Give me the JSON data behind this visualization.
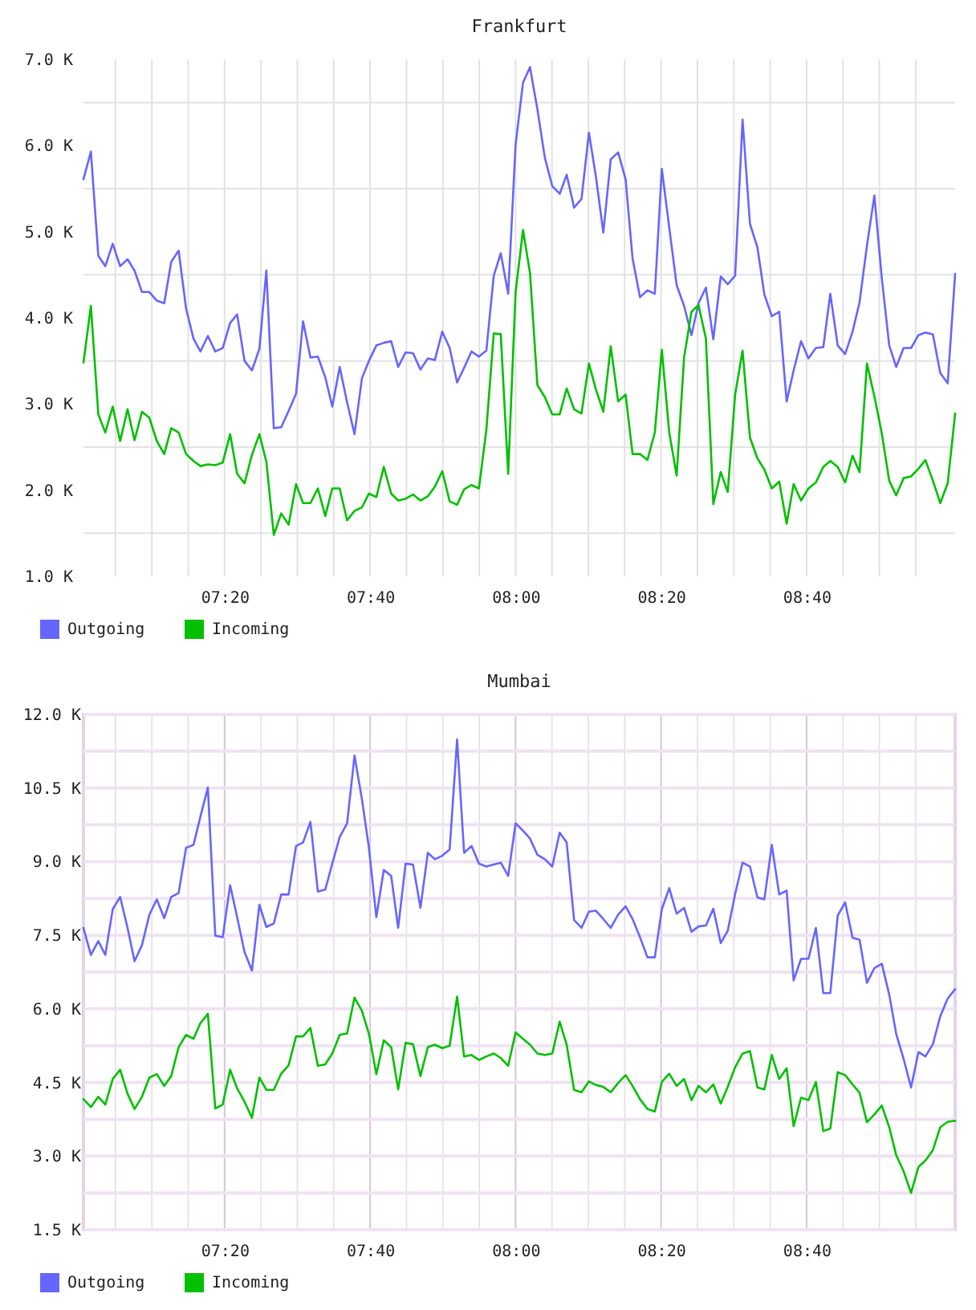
{
  "chart_data": [
    {
      "type": "line",
      "title": "Frankfurt",
      "x": [
        7.01,
        7.027,
        7.044,
        7.06,
        7.077,
        7.094,
        7.111,
        7.127,
        7.144,
        7.161,
        7.178,
        7.195,
        7.211,
        7.228,
        7.245,
        7.262,
        7.278,
        7.295,
        7.312,
        7.329,
        7.346,
        7.362,
        7.379,
        7.396,
        7.413,
        7.429,
        7.446,
        7.463,
        7.48,
        7.497,
        7.513,
        7.53,
        7.547,
        7.564,
        7.58,
        7.597,
        7.614,
        7.631,
        7.648,
        7.664,
        7.681,
        7.698,
        7.715,
        7.731,
        7.748,
        7.765,
        7.782,
        7.799,
        7.815,
        7.832,
        7.849,
        7.866,
        7.882,
        7.899,
        7.916,
        7.933,
        7.95,
        7.966,
        7.983,
        8.0,
        8.017,
        8.033,
        8.05,
        8.067,
        8.084,
        8.101,
        8.117,
        8.134,
        8.151,
        8.168,
        8.184,
        8.201,
        8.218,
        8.235,
        8.252,
        8.268,
        8.285,
        8.302,
        8.319,
        8.335,
        8.352,
        8.369,
        8.386,
        8.403,
        8.419,
        8.436,
        8.453,
        8.47,
        8.486,
        8.503,
        8.52,
        8.537,
        8.554,
        8.57,
        8.587,
        8.604,
        8.621,
        8.637,
        8.654,
        8.671,
        8.688,
        8.705,
        8.721,
        8.738,
        8.755,
        8.772,
        8.788,
        8.805,
        8.822,
        8.839,
        8.856,
        8.872,
        8.889,
        8.906,
        8.923,
        8.939,
        8.956,
        8.973,
        8.99,
        9.007
      ],
      "xlim": [
        7.01,
        9.007
      ],
      "xticks": [
        {
          "value": 7.0833,
          "label": null
        },
        {
          "value": 7.1667,
          "label": null
        },
        {
          "value": 7.25,
          "label": null
        },
        {
          "value": 7.3333,
          "label": "07:20"
        },
        {
          "value": 7.4167,
          "label": null
        },
        {
          "value": 7.5,
          "label": null
        },
        {
          "value": 7.5833,
          "label": null
        },
        {
          "value": 7.6667,
          "label": "07:40"
        },
        {
          "value": 7.75,
          "label": null
        },
        {
          "value": 7.8333,
          "label": null
        },
        {
          "value": 7.9167,
          "label": null
        },
        {
          "value": 8,
          "label": "08:00"
        },
        {
          "value": 8.0833,
          "label": null
        },
        {
          "value": 8.1667,
          "label": null
        },
        {
          "value": 8.25,
          "label": null
        },
        {
          "value": 8.3333,
          "label": "08:20"
        },
        {
          "value": 8.4167,
          "label": null
        },
        {
          "value": 8.5,
          "label": null
        },
        {
          "value": 8.5833,
          "label": null
        },
        {
          "value": 8.6667,
          "label": "08:40"
        },
        {
          "value": 8.75,
          "label": null
        },
        {
          "value": 8.8333,
          "label": null
        },
        {
          "value": 8.9167,
          "label": null
        }
      ],
      "ylim": [
        1000,
        7000
      ],
      "yticks": [
        {
          "value": 1000,
          "label": "1.0 K"
        },
        {
          "value": 1500,
          "label": null
        },
        {
          "value": 2000,
          "label": "2.0 K"
        },
        {
          "value": 2500,
          "label": null
        },
        {
          "value": 3000,
          "label": "3.0 K"
        },
        {
          "value": 3500,
          "label": null
        },
        {
          "value": 4000,
          "label": "4.0 K"
        },
        {
          "value": 4500,
          "label": null
        },
        {
          "value": 5000,
          "label": "5.0 K"
        },
        {
          "value": 5500,
          "label": null
        },
        {
          "value": 6000,
          "label": "6.0 K"
        },
        {
          "value": 6500,
          "label": null
        },
        {
          "value": 7000,
          "label": "7.0 K"
        }
      ],
      "grid": true,
      "legend": "bottom left",
      "line_style": "solid",
      "series": [
        {
          "name": "Outgoing",
          "color": "#6666ff",
          "values": [
            5610,
            5930,
            4720,
            4600,
            4860,
            4600,
            4680,
            4550,
            4300,
            4300,
            4200,
            4170,
            4650,
            4780,
            4110,
            3760,
            3610,
            3790,
            3610,
            3650,
            3940,
            4040,
            3500,
            3390,
            3640,
            4550,
            2720,
            2730,
            2920,
            3120,
            3960,
            3540,
            3550,
            3310,
            2970,
            3430,
            3020,
            2650,
            3300,
            3500,
            3680,
            3710,
            3730,
            3430,
            3600,
            3590,
            3400,
            3530,
            3510,
            3840,
            3650,
            3250,
            3420,
            3610,
            3550,
            3620,
            4490,
            4750,
            4280,
            6010,
            6730,
            6910,
            6420,
            5860,
            5530,
            5440,
            5660,
            5280,
            5380,
            6150,
            5640,
            4990,
            5840,
            5920,
            5610,
            4690,
            4240,
            4320,
            4280,
            5730,
            5050,
            4380,
            4140,
            3800,
            4170,
            4350,
            3750,
            4480,
            4390,
            4490,
            6300,
            5090,
            4820,
            4270,
            4020,
            4070,
            3030,
            3390,
            3730,
            3530,
            3650,
            3660,
            4280,
            3680,
            3580,
            3840,
            4180,
            4840,
            5420,
            4460,
            3680,
            3430,
            3650,
            3650,
            3800,
            3830,
            3810,
            3360,
            3240,
            4510
          ]
        },
        {
          "name": "Incoming",
          "color": "#00c000",
          "values": [
            3480,
            4140,
            2880,
            2670,
            2970,
            2570,
            2940,
            2580,
            2910,
            2840,
            2570,
            2420,
            2720,
            2670,
            2420,
            2340,
            2280,
            2300,
            2290,
            2320,
            2650,
            2190,
            2080,
            2410,
            2650,
            2330,
            1480,
            1730,
            1600,
            2070,
            1850,
            1850,
            2020,
            1700,
            2020,
            2020,
            1650,
            1760,
            1800,
            1960,
            1920,
            2270,
            1960,
            1880,
            1900,
            1950,
            1880,
            1930,
            2040,
            2220,
            1870,
            1830,
            2010,
            2060,
            2020,
            2700,
            3820,
            3810,
            2190,
            4300,
            5020,
            4520,
            3220,
            3080,
            2880,
            2880,
            3180,
            2940,
            2890,
            3470,
            3170,
            2910,
            3670,
            3030,
            3110,
            2420,
            2420,
            2350,
            2670,
            3630,
            2670,
            2170,
            3540,
            4070,
            4150,
            3760,
            1840,
            2210,
            1980,
            3110,
            3620,
            2610,
            2370,
            2240,
            2020,
            2100,
            1610,
            2070,
            1880,
            2020,
            2090,
            2270,
            2340,
            2270,
            2090,
            2400,
            2210,
            3470,
            3090,
            2660,
            2110,
            1940,
            2140,
            2160,
            2250,
            2350,
            2110,
            1850,
            2080,
            2890
          ]
        }
      ]
    },
    {
      "type": "line",
      "title": "Mumbai",
      "x": [
        7.01,
        7.027,
        7.044,
        7.06,
        7.077,
        7.094,
        7.111,
        7.127,
        7.144,
        7.161,
        7.178,
        7.195,
        7.211,
        7.228,
        7.245,
        7.262,
        7.278,
        7.295,
        7.312,
        7.329,
        7.346,
        7.362,
        7.379,
        7.396,
        7.413,
        7.429,
        7.446,
        7.463,
        7.48,
        7.497,
        7.513,
        7.53,
        7.547,
        7.564,
        7.58,
        7.597,
        7.614,
        7.631,
        7.648,
        7.664,
        7.681,
        7.698,
        7.715,
        7.731,
        7.748,
        7.765,
        7.782,
        7.799,
        7.815,
        7.832,
        7.849,
        7.866,
        7.882,
        7.899,
        7.916,
        7.933,
        7.95,
        7.966,
        7.983,
        8.0,
        8.017,
        8.033,
        8.05,
        8.067,
        8.084,
        8.101,
        8.117,
        8.134,
        8.151,
        8.168,
        8.184,
        8.201,
        8.218,
        8.235,
        8.252,
        8.268,
        8.285,
        8.302,
        8.319,
        8.335,
        8.352,
        8.369,
        8.386,
        8.403,
        8.419,
        8.436,
        8.453,
        8.47,
        8.486,
        8.503,
        8.52,
        8.537,
        8.554,
        8.57,
        8.587,
        8.604,
        8.621,
        8.637,
        8.654,
        8.671,
        8.688,
        8.705,
        8.721,
        8.738,
        8.755,
        8.772,
        8.788,
        8.805,
        8.822,
        8.839,
        8.856,
        8.872,
        8.889,
        8.906,
        8.923,
        8.939,
        8.956,
        8.973,
        8.99,
        9.007
      ],
      "xlim": [
        7.01,
        9.007
      ],
      "xticks": [
        {
          "value": 7.0833,
          "label": null
        },
        {
          "value": 7.1667,
          "label": null
        },
        {
          "value": 7.25,
          "label": null
        },
        {
          "value": 7.3333,
          "label": "07:20"
        },
        {
          "value": 7.4167,
          "label": null
        },
        {
          "value": 7.5,
          "label": null
        },
        {
          "value": 7.5833,
          "label": null
        },
        {
          "value": 7.6667,
          "label": "07:40"
        },
        {
          "value": 7.75,
          "label": null
        },
        {
          "value": 7.8333,
          "label": null
        },
        {
          "value": 7.9167,
          "label": null
        },
        {
          "value": 8,
          "label": "08:00"
        },
        {
          "value": 8.0833,
          "label": null
        },
        {
          "value": 8.1667,
          "label": null
        },
        {
          "value": 8.25,
          "label": null
        },
        {
          "value": 8.3333,
          "label": "08:20"
        },
        {
          "value": 8.4167,
          "label": null
        },
        {
          "value": 8.5,
          "label": null
        },
        {
          "value": 8.5833,
          "label": null
        },
        {
          "value": 8.6667,
          "label": "08:40"
        },
        {
          "value": 8.75,
          "label": null
        },
        {
          "value": 8.8333,
          "label": null
        },
        {
          "value": 8.9167,
          "label": null
        }
      ],
      "ylim": [
        1500,
        12000
      ],
      "yticks": [
        {
          "value": 1500,
          "label": "1.5 K"
        },
        {
          "value": 2250,
          "label": null
        },
        {
          "value": 3000,
          "label": "3.0 K"
        },
        {
          "value": 3750,
          "label": null
        },
        {
          "value": 4500,
          "label": "4.5 K"
        },
        {
          "value": 5250,
          "label": null
        },
        {
          "value": 6000,
          "label": "6.0 K"
        },
        {
          "value": 6750,
          "label": null
        },
        {
          "value": 7500,
          "label": "7.5 K"
        },
        {
          "value": 8250,
          "label": null
        },
        {
          "value": 9000,
          "label": "9.0 K"
        },
        {
          "value": 9750,
          "label": null
        },
        {
          "value": 10500,
          "label": "10.5 K"
        },
        {
          "value": 11250,
          "label": null
        },
        {
          "value": 12000,
          "label": "12.0 K"
        }
      ],
      "grid": true,
      "legend": "bottom left",
      "line_style": "solid",
      "series": [
        {
          "name": "Outgoing",
          "color": "#6666ff",
          "values": [
            7650,
            7100,
            7380,
            7100,
            8030,
            8280,
            7650,
            6970,
            7300,
            7920,
            8230,
            7850,
            8280,
            8360,
            9280,
            9340,
            9920,
            10510,
            7490,
            7460,
            8520,
            7870,
            7160,
            6780,
            8120,
            7670,
            7740,
            8330,
            8330,
            9320,
            9390,
            9810,
            8390,
            8430,
            8960,
            9500,
            9780,
            11160,
            10270,
            9280,
            7870,
            8830,
            8710,
            7650,
            8960,
            8940,
            8060,
            9180,
            9050,
            9120,
            9250,
            11490,
            9180,
            9320,
            8960,
            8900,
            8940,
            8980,
            8710,
            9780,
            9630,
            9470,
            9140,
            9050,
            8900,
            9590,
            9390,
            7810,
            7650,
            7980,
            8000,
            7830,
            7650,
            7920,
            8090,
            7830,
            7460,
            7050,
            7050,
            8030,
            8460,
            7940,
            8060,
            7570,
            7680,
            7700,
            8040,
            7340,
            7590,
            8340,
            8980,
            8900,
            8270,
            8230,
            9340,
            8330,
            8410,
            6580,
            7020,
            7020,
            7650,
            6320,
            6320,
            7900,
            8170,
            7450,
            7410,
            6530,
            6830,
            6920,
            6290,
            5490,
            4980,
            4400,
            5120,
            5030,
            5280,
            5850,
            6210,
            6400
          ]
        },
        {
          "name": "Incoming",
          "color": "#00c000",
          "values": [
            4160,
            4000,
            4210,
            4050,
            4570,
            4760,
            4270,
            3960,
            4210,
            4600,
            4670,
            4430,
            4630,
            5220,
            5470,
            5390,
            5710,
            5900,
            3970,
            4050,
            4760,
            4380,
            4110,
            3780,
            4600,
            4350,
            4350,
            4680,
            4850,
            5440,
            5440,
            5610,
            4840,
            4870,
            5090,
            5470,
            5500,
            6230,
            5960,
            5490,
            4670,
            5360,
            5220,
            4360,
            5310,
            5280,
            4630,
            5220,
            5270,
            5200,
            5250,
            6250,
            5030,
            5060,
            4960,
            5030,
            5090,
            5000,
            4840,
            5520,
            5390,
            5270,
            5090,
            5060,
            5090,
            5740,
            5270,
            4350,
            4300,
            4520,
            4450,
            4410,
            4300,
            4490,
            4650,
            4430,
            4160,
            3960,
            3910,
            4510,
            4680,
            4430,
            4570,
            4140,
            4430,
            4300,
            4460,
            4070,
            4410,
            4810,
            5090,
            5140,
            4400,
            4360,
            5060,
            4570,
            4790,
            3610,
            4190,
            4140,
            4510,
            3510,
            3560,
            4710,
            4650,
            4460,
            4290,
            3690,
            3850,
            4030,
            3590,
            3020,
            2690,
            2250,
            2780,
            2910,
            3120,
            3590,
            3700,
            3720
          ]
        }
      ]
    }
  ]
}
